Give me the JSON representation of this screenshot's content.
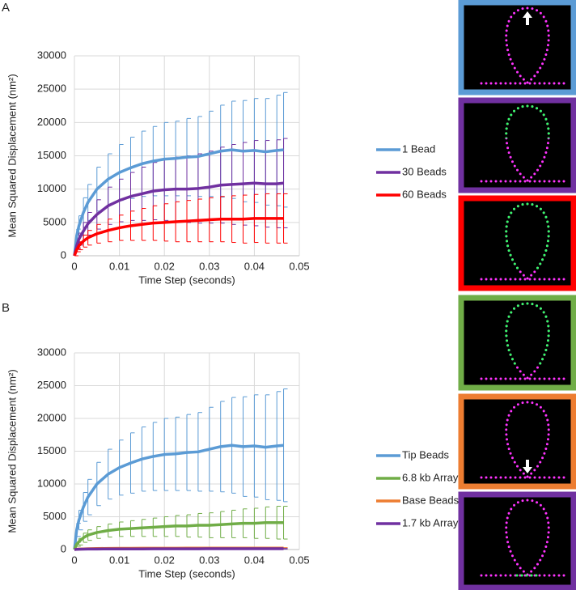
{
  "chart_data": [
    {
      "type": "line",
      "panel_label": "A",
      "x_label": "Time Step (seconds)",
      "y_label": "Mean Squared Displacement (nm²)",
      "x": [
        0,
        0.0005,
        0.001,
        0.002,
        0.003,
        0.005,
        0.0075,
        0.01,
        0.0125,
        0.015,
        0.0175,
        0.02,
        0.0225,
        0.025,
        0.0275,
        0.03,
        0.0325,
        0.035,
        0.0375,
        0.04,
        0.0425,
        0.045,
        0.0465
      ],
      "xlim": [
        0,
        0.05
      ],
      "xticks": [
        0,
        0.01,
        0.02,
        0.03,
        0.04,
        0.05
      ],
      "ylim": [
        0,
        30000
      ],
      "yticks": [
        0,
        5000,
        10000,
        15000,
        20000,
        25000,
        30000
      ],
      "grid": true,
      "series": [
        {
          "name": "1 Bead",
          "color": "#5b9bd5",
          "values": [
            0,
            3000,
            4500,
            6500,
            8000,
            10000,
            11500,
            12500,
            13200,
            13800,
            14200,
            14500,
            14600,
            14800,
            14900,
            15300,
            15700,
            15900,
            15700,
            15800,
            15600,
            15800,
            15900
          ],
          "errors": [
            0,
            1000,
            1500,
            2200,
            2700,
            3300,
            3800,
            4200,
            4600,
            4900,
            5200,
            5500,
            5600,
            5800,
            6000,
            6400,
            6900,
            7300,
            7600,
            7800,
            8000,
            8300,
            8600
          ]
        },
        {
          "name": "30 Beads",
          "color": "#7030a0",
          "values": [
            0,
            1500,
            2500,
            3700,
            4800,
            6200,
            7500,
            8300,
            8900,
            9300,
            9700,
            9900,
            10000,
            10000,
            10100,
            10300,
            10600,
            10700,
            10800,
            10900,
            10800,
            10800,
            10900
          ],
          "errors": [
            0,
            500,
            900,
            1300,
            1700,
            2200,
            2800,
            3200,
            3600,
            4000,
            4300,
            4600,
            4800,
            5000,
            5200,
            5400,
            5700,
            6000,
            6200,
            6400,
            6500,
            6600,
            6700
          ]
        },
        {
          "name": "60 Beads",
          "color": "#ff0000",
          "values": [
            0,
            900,
            1500,
            2200,
            2700,
            3300,
            3800,
            4200,
            4500,
            4700,
            4900,
            5000,
            5100,
            5200,
            5300,
            5400,
            5500,
            5500,
            5500,
            5600,
            5600,
            5600,
            5600
          ],
          "errors": [
            0,
            300,
            600,
            900,
            1100,
            1400,
            1700,
            1900,
            2200,
            2400,
            2600,
            2800,
            3000,
            3100,
            3200,
            3300,
            3400,
            3500,
            3600,
            3600,
            3700,
            3700,
            3700
          ]
        }
      ]
    },
    {
      "type": "line",
      "panel_label": "B",
      "x_label": "Time Step (seconds)",
      "y_label": "Mean Squared Displacement (nm²)",
      "x": [
        0,
        0.0005,
        0.001,
        0.002,
        0.003,
        0.005,
        0.0075,
        0.01,
        0.0125,
        0.015,
        0.0175,
        0.02,
        0.0225,
        0.025,
        0.0275,
        0.03,
        0.0325,
        0.035,
        0.0375,
        0.04,
        0.0425,
        0.045,
        0.0465
      ],
      "xlim": [
        0,
        0.05
      ],
      "xticks": [
        0,
        0.01,
        0.02,
        0.03,
        0.04,
        0.05
      ],
      "ylim": [
        0,
        30000
      ],
      "yticks": [
        0,
        5000,
        10000,
        15000,
        20000,
        25000,
        30000
      ],
      "grid": true,
      "series": [
        {
          "name": "Tip Beads",
          "color": "#5b9bd5",
          "values": [
            0,
            3000,
            4500,
            6500,
            8000,
            10000,
            11500,
            12500,
            13200,
            13800,
            14200,
            14500,
            14600,
            14800,
            14900,
            15300,
            15700,
            15900,
            15700,
            15800,
            15600,
            15800,
            15900
          ],
          "errors": [
            0,
            1000,
            1500,
            2200,
            2700,
            3300,
            3800,
            4200,
            4600,
            4900,
            5200,
            5500,
            5600,
            5800,
            6000,
            6400,
            6900,
            7300,
            7600,
            7800,
            8000,
            8300,
            8600
          ]
        },
        {
          "name": "6.8 kb Array",
          "color": "#70ad47",
          "values": [
            0,
            800,
            1200,
            1800,
            2200,
            2600,
            2900,
            3100,
            3200,
            3300,
            3400,
            3500,
            3600,
            3600,
            3700,
            3700,
            3800,
            3900,
            4000,
            4000,
            4100,
            4100,
            4100
          ],
          "errors": [
            0,
            300,
            500,
            700,
            800,
            900,
            1000,
            1100,
            1200,
            1300,
            1400,
            1500,
            1600,
            1700,
            1800,
            1900,
            2000,
            2100,
            2200,
            2300,
            2400,
            2500,
            2500
          ]
        },
        {
          "name": "Base Beads",
          "color": "#ed7d31",
          "values": [
            0,
            50,
            80,
            100,
            120,
            150,
            170,
            180,
            190,
            200,
            200,
            200,
            200,
            210,
            210,
            210,
            210,
            220,
            220,
            220,
            220,
            220,
            220
          ],
          "errors": [
            0,
            20,
            30,
            40,
            40,
            50,
            50,
            50,
            60,
            60,
            60,
            60,
            60,
            70,
            70,
            70,
            70,
            70,
            70,
            70,
            70,
            70,
            70
          ]
        },
        {
          "name": "1.7 kb Array",
          "color": "#7030a0",
          "values": [
            0,
            30,
            50,
            60,
            70,
            80,
            90,
            100,
            100,
            100,
            110,
            110,
            110,
            110,
            110,
            120,
            120,
            120,
            120,
            120,
            120,
            120,
            120
          ],
          "errors": [
            0,
            10,
            20,
            20,
            30,
            30,
            30,
            30,
            40,
            40,
            40,
            40,
            40,
            40,
            40,
            40,
            40,
            40,
            40,
            40,
            40,
            40,
            40
          ]
        }
      ]
    }
  ]
}
